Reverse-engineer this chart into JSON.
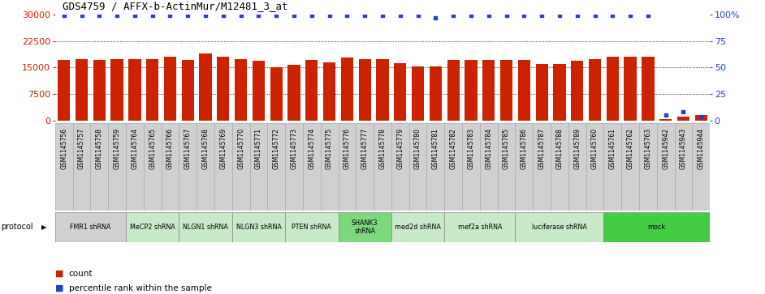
{
  "title": "GDS4759 / AFFX-b-ActinMur/M12481_3_at",
  "samples": [
    "GSM1145756",
    "GSM1145757",
    "GSM1145758",
    "GSM1145759",
    "GSM1145764",
    "GSM1145765",
    "GSM1145766",
    "GSM1145767",
    "GSM1145768",
    "GSM1145769",
    "GSM1145770",
    "GSM1145771",
    "GSM1145772",
    "GSM1145773",
    "GSM1145774",
    "GSM1145775",
    "GSM1145776",
    "GSM1145777",
    "GSM1145778",
    "GSM1145779",
    "GSM1145780",
    "GSM1145781",
    "GSM1145782",
    "GSM1145783",
    "GSM1145784",
    "GSM1145785",
    "GSM1145786",
    "GSM1145787",
    "GSM1145788",
    "GSM1145789",
    "GSM1145760",
    "GSM1145761",
    "GSM1145762",
    "GSM1145763",
    "GSM1145942",
    "GSM1145943",
    "GSM1145944"
  ],
  "counts": [
    17200,
    17500,
    17200,
    17300,
    17300,
    17300,
    18100,
    17200,
    19000,
    18000,
    17500,
    17000,
    15200,
    15800,
    17200,
    16600,
    17800,
    17500,
    17500,
    16300,
    15300,
    15400,
    17100,
    17200,
    17200,
    17200,
    17100,
    16000,
    16100,
    17000,
    17500,
    18100,
    18200,
    18200,
    500,
    1200,
    1500
  ],
  "percentiles": [
    99,
    99,
    99,
    99,
    99,
    99,
    99,
    99,
    99,
    99,
    99,
    99,
    99,
    99,
    99,
    99,
    99,
    99,
    99,
    99,
    99,
    97,
    99,
    99,
    99,
    99,
    99,
    99,
    99,
    99,
    99,
    99,
    99,
    99,
    5,
    8,
    4
  ],
  "protocols": [
    {
      "label": "FMR1 shRNA",
      "start": 0,
      "end": 4,
      "color": "#d0d0d0"
    },
    {
      "label": "MeCP2 shRNA",
      "start": 4,
      "end": 7,
      "color": "#c8eac8"
    },
    {
      "label": "NLGN1 shRNA",
      "start": 7,
      "end": 10,
      "color": "#c8eac8"
    },
    {
      "label": "NLGN3 shRNA",
      "start": 10,
      "end": 13,
      "color": "#c8eac8"
    },
    {
      "label": "PTEN shRNA",
      "start": 13,
      "end": 16,
      "color": "#c8eac8"
    },
    {
      "label": "SHANK3\nshRNA",
      "start": 16,
      "end": 19,
      "color": "#7dd87d"
    },
    {
      "label": "med2d shRNA",
      "start": 19,
      "end": 22,
      "color": "#c8eac8"
    },
    {
      "label": "mef2a shRNA",
      "start": 22,
      "end": 26,
      "color": "#c8eac8"
    },
    {
      "label": "luciferase shRNA",
      "start": 26,
      "end": 31,
      "color": "#c8eac8"
    },
    {
      "label": "mock",
      "start": 31,
      "end": 37,
      "color": "#44cc44"
    }
  ],
  "xtick_bg_color": "#d0d0d0",
  "ylim_left": [
    0,
    30000
  ],
  "ylim_right": [
    0,
    100
  ],
  "yticks_left": [
    0,
    7500,
    15000,
    22500,
    30000
  ],
  "ytick_labels_left": [
    "0",
    "7500",
    "15000",
    "22500",
    "30000"
  ],
  "yticks_right": [
    0,
    25,
    50,
    75,
    100
  ],
  "ytick_labels_right": [
    "0",
    "25",
    "50",
    "75",
    "100%"
  ],
  "bar_color": "#cc2200",
  "dot_color": "#2244cc",
  "bg_color": "#ffffff",
  "tick_color_left": "#cc2200",
  "tick_color_right": "#2244cc"
}
